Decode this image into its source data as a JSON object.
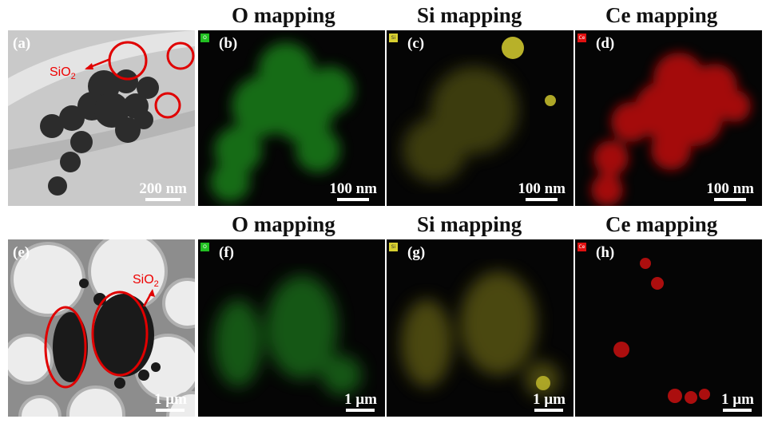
{
  "row1": {
    "titles": [
      "O mapping",
      "Si mapping",
      "Ce mapping"
    ],
    "labels": [
      "(a)",
      "(b)",
      "(c)",
      "(d)"
    ],
    "scalebars": [
      "200 nm",
      "100 nm",
      "100 nm",
      "100 nm"
    ],
    "annotation": "SiO2"
  },
  "row2": {
    "titles": [
      "O mapping",
      "Si mapping",
      "Ce mapping"
    ],
    "labels": [
      "(e)",
      "(f)",
      "(g)",
      "(h)"
    ],
    "scalebars": [
      "1 µm",
      "1 µm",
      "1 µm",
      "1 µm"
    ],
    "annotation": "SiO2"
  },
  "element_tags": {
    "o": "O",
    "si": "Si",
    "ce": "Ce"
  },
  "colors": {
    "o": "#22c022",
    "si": "#d8d030",
    "ce": "#e01010",
    "annotation": "#e00000"
  }
}
